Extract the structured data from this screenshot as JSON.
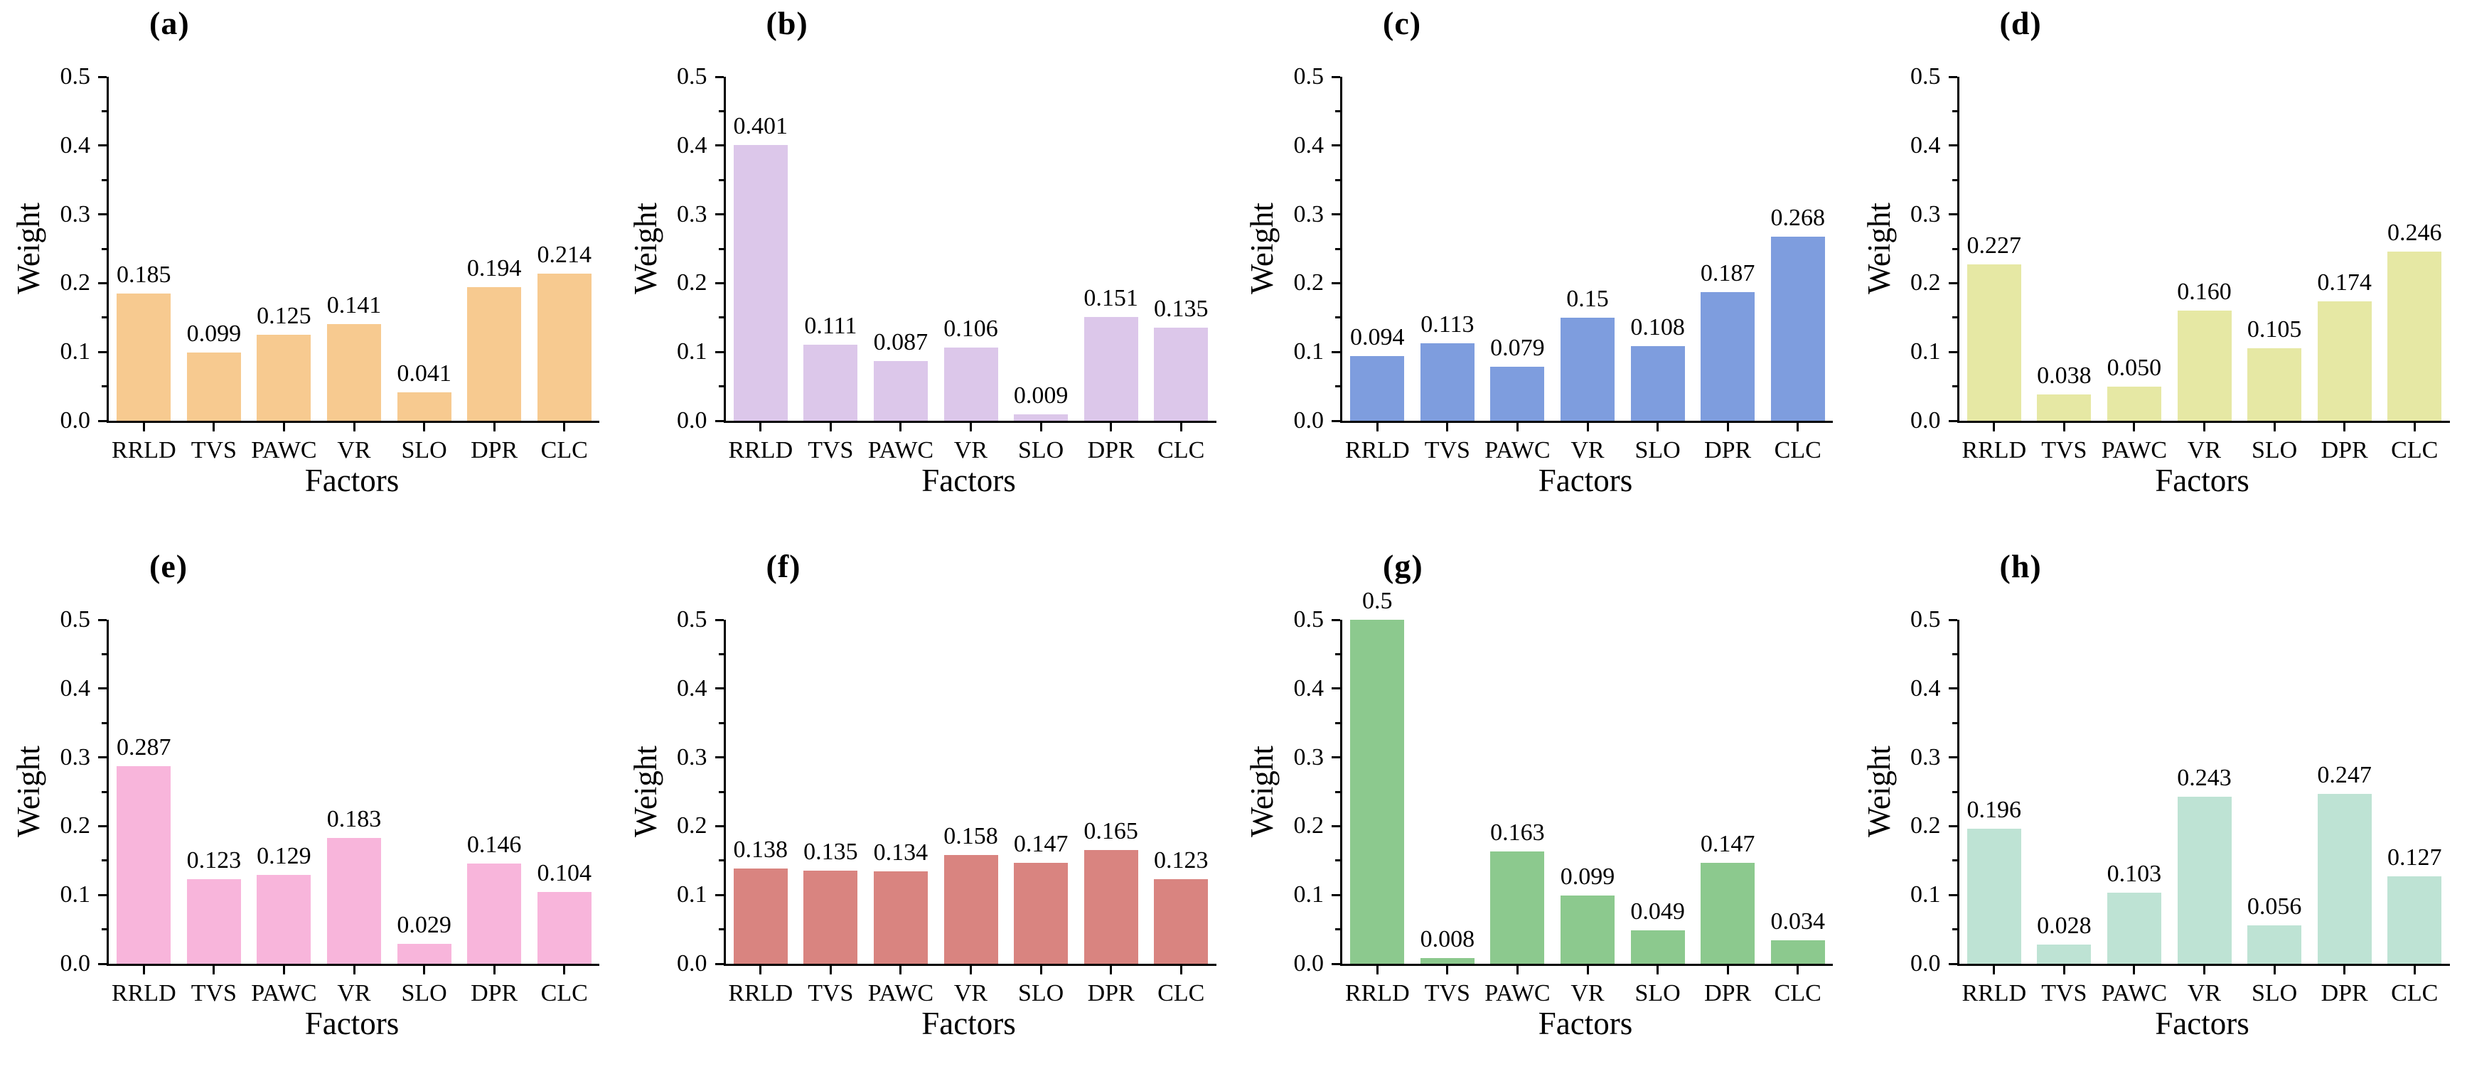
{
  "figure": {
    "background": "#ffffff",
    "rows": 2,
    "cols": 4
  },
  "axes": {
    "ylabel": "Weight",
    "xlabel": "Factors",
    "y_ticks": [
      "0.0",
      "0.1",
      "0.2",
      "0.3",
      "0.4",
      "0.5"
    ],
    "ylim": [
      0,
      0.5
    ],
    "grid": false,
    "tick_color": "#000000",
    "axis_color": "#000000"
  },
  "chart_data": [
    {
      "type": "bar",
      "panel": "(a)",
      "bar_color": "#F7CA90",
      "categories": [
        "RRLD",
        "TVS",
        "PAWC",
        "VR",
        "SLO",
        "DPR",
        "CLC"
      ],
      "values": [
        0.185,
        0.099,
        0.125,
        0.141,
        0.041,
        0.194,
        0.214
      ],
      "labels": [
        "0.185",
        "0.099",
        "0.125",
        "0.141",
        "0.041",
        "0.194",
        "0.214"
      ],
      "title": "",
      "xlabel": "Factors",
      "ylabel": "Weight",
      "ylim": [
        0,
        0.5
      ]
    },
    {
      "type": "bar",
      "panel": "(b)",
      "bar_color": "#DCC7EA",
      "categories": [
        "RRLD",
        "TVS",
        "PAWC",
        "VR",
        "SLO",
        "DPR",
        "CLC"
      ],
      "values": [
        0.401,
        0.111,
        0.087,
        0.106,
        0.009,
        0.151,
        0.135
      ],
      "labels": [
        "0.401",
        "0.111",
        "0.087",
        "0.106",
        "0.009",
        "0.151",
        "0.135"
      ],
      "title": "",
      "xlabel": "Factors",
      "ylabel": "Weight",
      "ylim": [
        0,
        0.5
      ]
    },
    {
      "type": "bar",
      "panel": "(c)",
      "bar_color": "#7E9DDE",
      "categories": [
        "RRLD",
        "TVS",
        "PAWC",
        "VR",
        "SLO",
        "DPR",
        "CLC"
      ],
      "values": [
        0.094,
        0.113,
        0.079,
        0.15,
        0.108,
        0.187,
        0.268
      ],
      "labels": [
        "0.094",
        "0.113",
        "0.079",
        "0.15",
        "0.108",
        "0.187",
        "0.268"
      ],
      "title": "",
      "xlabel": "Factors",
      "ylabel": "Weight",
      "ylim": [
        0,
        0.5
      ]
    },
    {
      "type": "bar",
      "panel": "(d)",
      "bar_color": "#E6E8A4",
      "categories": [
        "RRLD",
        "TVS",
        "PAWC",
        "VR",
        "SLO",
        "DPR",
        "CLC"
      ],
      "values": [
        0.227,
        0.038,
        0.05,
        0.16,
        0.105,
        0.174,
        0.246
      ],
      "labels": [
        "0.227",
        "0.038",
        "0.050",
        "0.160",
        "0.105",
        "0.174",
        "0.246"
      ],
      "title": "",
      "xlabel": "Factors",
      "ylabel": "Weight",
      "ylim": [
        0,
        0.5
      ]
    },
    {
      "type": "bar",
      "panel": "(e)",
      "bar_color": "#F8B5DB",
      "categories": [
        "RRLD",
        "TVS",
        "PAWC",
        "VR",
        "SLO",
        "DPR",
        "CLC"
      ],
      "values": [
        0.287,
        0.123,
        0.129,
        0.183,
        0.029,
        0.146,
        0.104
      ],
      "labels": [
        "0.287",
        "0.123",
        "0.129",
        "0.183",
        "0.029",
        "0.146",
        "0.104"
      ],
      "title": "",
      "xlabel": "Factors",
      "ylabel": "Weight",
      "ylim": [
        0,
        0.5
      ]
    },
    {
      "type": "bar",
      "panel": "(f)",
      "bar_color": "#D98480",
      "categories": [
        "RRLD",
        "TVS",
        "PAWC",
        "VR",
        "SLO",
        "DPR",
        "CLC"
      ],
      "values": [
        0.138,
        0.135,
        0.134,
        0.158,
        0.147,
        0.165,
        0.123
      ],
      "labels": [
        "0.138",
        "0.135",
        "0.134",
        "0.158",
        "0.147",
        "0.165",
        "0.123"
      ],
      "title": "",
      "xlabel": "Factors",
      "ylabel": "Weight",
      "ylim": [
        0,
        0.5
      ]
    },
    {
      "type": "bar",
      "panel": "(g)",
      "bar_color": "#8CC98E",
      "categories": [
        "RRLD",
        "TVS",
        "PAWC",
        "VR",
        "SLO",
        "DPR",
        "CLC"
      ],
      "values": [
        0.5,
        0.008,
        0.163,
        0.099,
        0.049,
        0.147,
        0.034
      ],
      "labels": [
        "0.5",
        "0.008",
        "0.163",
        "0.099",
        "0.049",
        "0.147",
        "0.034"
      ],
      "title": "",
      "xlabel": "Factors",
      "ylabel": "Weight",
      "ylim": [
        0,
        0.5
      ]
    },
    {
      "type": "bar",
      "panel": "(h)",
      "bar_color": "#BEE3D4",
      "categories": [
        "RRLD",
        "TVS",
        "PAWC",
        "VR",
        "SLO",
        "DPR",
        "CLC"
      ],
      "values": [
        0.196,
        0.028,
        0.103,
        0.243,
        0.056,
        0.247,
        0.127
      ],
      "labels": [
        "0.196",
        "0.028",
        "0.103",
        "0.243",
        "0.056",
        "0.247",
        "0.127"
      ],
      "title": "",
      "xlabel": "Factors",
      "ylabel": "Weight",
      "ylim": [
        0,
        0.5
      ]
    }
  ]
}
